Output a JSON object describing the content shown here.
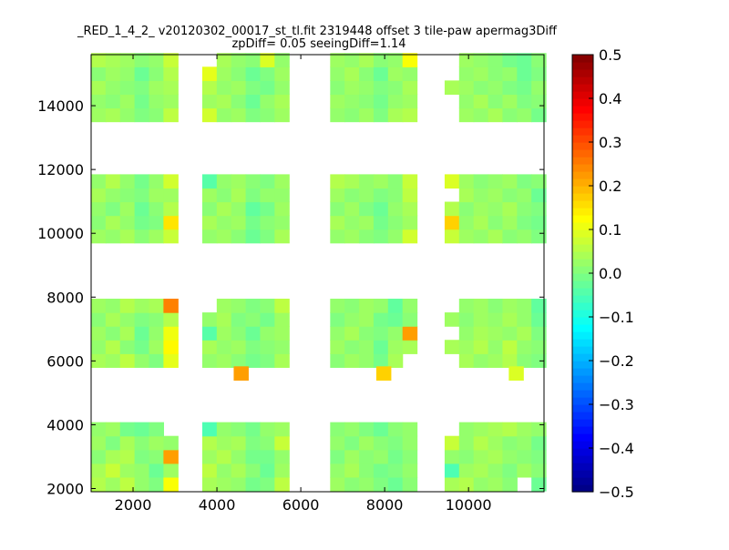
{
  "chart_data": {
    "type": "heatmap",
    "title_line1": "_RED_1_4_2_ v20120302_00017_st_tl.fit 2319448 offset 3 tile-paw apermag3Diff",
    "title_line2": "zpDiff= 0.05 seeingDiff=1.14",
    "xlim": [
      1000,
      11800
    ],
    "ylim": [
      1900,
      15600
    ],
    "xticks": [
      2000,
      4000,
      6000,
      8000,
      10000
    ],
    "yticks": [
      2000,
      4000,
      6000,
      8000,
      10000,
      12000,
      14000
    ],
    "colormap": "jet",
    "colorbar": {
      "range": [
        -0.5,
        0.5
      ],
      "ticks": [
        "0.5",
        "0.4",
        "0.3",
        "0.2",
        "0.1",
        "0.0",
        "−0.1",
        "−0.2",
        "−0.3",
        "−0.4",
        "−0.5"
      ]
    },
    "cell_size": [
      345,
      430
    ],
    "blocks": [
      {
        "x0": 1000,
        "y0": 1930,
        "cols": 6,
        "rows": 5,
        "values": [
          [
            0.05,
            0.03,
            0.06,
            0.02,
            0.0,
            0.12
          ],
          [
            0.04,
            0.07,
            0.03,
            0.02,
            -0.02,
            0.03
          ],
          [
            0.01,
            0.04,
            0.05,
            0.0,
            0.01,
            0.22
          ],
          [
            0.03,
            0.0,
            0.04,
            0.01,
            0.03,
            0.02
          ],
          [
            0.02,
            0.03,
            -0.01,
            -0.02,
            0.0,
            null
          ]
        ]
      },
      {
        "x0": 3650,
        "y0": 1930,
        "cols": 6,
        "rows": 5,
        "values": [
          [
            0.04,
            0.03,
            0.02,
            -0.01,
            0.0,
            0.06
          ],
          [
            0.06,
            0.02,
            0.04,
            0.01,
            -0.02,
            0.03
          ],
          [
            0.03,
            0.05,
            0.02,
            -0.01,
            -0.01,
            0.02
          ],
          [
            0.05,
            0.03,
            0.04,
            0.0,
            0.01,
            0.07
          ],
          [
            -0.05,
            0.02,
            0.01,
            -0.01,
            0.02,
            0.03
          ]
        ]
      },
      {
        "x0": 6700,
        "y0": 1930,
        "cols": 6,
        "rows": 5,
        "values": [
          [
            0.03,
            0.01,
            0.02,
            0.0,
            -0.02,
            0.01
          ],
          [
            0.02,
            0.04,
            0.01,
            -0.01,
            0.0,
            0.02
          ],
          [
            0.0,
            0.03,
            0.01,
            0.02,
            -0.01,
            0.01
          ],
          [
            0.02,
            0.0,
            0.03,
            0.01,
            0.0,
            0.02
          ],
          [
            0.01,
            0.02,
            0.0,
            -0.02,
            0.01,
            0.02
          ]
        ]
      },
      {
        "x0": 9430,
        "y0": 1930,
        "cols": 7,
        "rows": 5,
        "values": [
          [
            0.04,
            0.05,
            0.02,
            0.03,
            0.01,
            null,
            -0.02
          ],
          [
            -0.05,
            0.03,
            0.04,
            0.02,
            0.0,
            0.03,
            0.01
          ],
          [
            0.02,
            0.01,
            0.03,
            0.04,
            0.02,
            0.01,
            0.0
          ],
          [
            0.07,
            0.02,
            0.05,
            0.03,
            0.01,
            0.02,
            -0.01
          ],
          [
            null,
            0.02,
            0.03,
            0.04,
            0.05,
            0.03,
            0.02
          ]
        ]
      },
      {
        "x0": 1000,
        "y0": 5800,
        "cols": 6,
        "rows": 5,
        "values": [
          [
            0.04,
            0.03,
            0.06,
            0.02,
            0.0,
            0.1
          ],
          [
            0.02,
            0.05,
            0.01,
            -0.01,
            0.03,
            0.13
          ],
          [
            0.03,
            0.01,
            0.04,
            -0.02,
            0.02,
            0.11
          ],
          [
            0.01,
            0.04,
            0.02,
            0.0,
            0.01,
            0.05
          ],
          [
            0.03,
            0.02,
            0.05,
            0.03,
            0.04,
            0.25
          ]
        ]
      },
      {
        "x0": 3650,
        "y0": 5800,
        "cols": 6,
        "rows": 5,
        "values": [
          [
            0.02,
            0.03,
            0.01,
            -0.01,
            0.0,
            0.04
          ],
          [
            0.04,
            0.02,
            0.03,
            0.0,
            0.01,
            0.02
          ],
          [
            -0.04,
            0.03,
            0.01,
            -0.02,
            0.02,
            0.03
          ],
          [
            0.02,
            0.04,
            0.0,
            0.01,
            -0.01,
            0.03
          ],
          [
            null,
            0.03,
            0.02,
            0.0,
            0.01,
            0.06
          ]
        ]
      },
      {
        "x0": 6700,
        "y0": 5800,
        "cols": 6,
        "rows": 5,
        "values": [
          [
            0.01,
            0.03,
            0.02,
            -0.01,
            0.04,
            null
          ],
          [
            0.03,
            0.01,
            0.02,
            -0.02,
            0.03,
            0.04
          ],
          [
            0.02,
            0.04,
            0.01,
            0.0,
            0.02,
            0.22
          ],
          [
            0.0,
            0.02,
            0.03,
            -0.01,
            -0.02,
            0.01
          ],
          [
            0.02,
            0.01,
            0.03,
            0.02,
            -0.03,
            0.02
          ]
        ]
      },
      {
        "x0": 9430,
        "y0": 5800,
        "cols": 7,
        "rows": 5,
        "values": [
          [
            null,
            0.04,
            0.02,
            0.03,
            0.05,
            0.01,
            0.0
          ],
          [
            0.04,
            0.03,
            0.05,
            0.02,
            0.06,
            0.02,
            0.01
          ],
          [
            null,
            0.02,
            0.04,
            0.03,
            0.02,
            0.04,
            0.0
          ],
          [
            0.03,
            0.01,
            0.03,
            0.02,
            0.04,
            0.02,
            -0.02
          ],
          [
            null,
            0.02,
            0.03,
            0.01,
            0.03,
            0.02,
            -0.03
          ]
        ]
      },
      {
        "x0": 1000,
        "y0": 9700,
        "cols": 6,
        "rows": 5,
        "values": [
          [
            0.03,
            0.02,
            0.04,
            0.01,
            0.03,
            0.07
          ],
          [
            0.01,
            0.04,
            0.02,
            -0.01,
            0.0,
            0.15
          ],
          [
            0.02,
            0.0,
            0.03,
            -0.02,
            0.01,
            0.05
          ],
          [
            0.04,
            0.02,
            0.01,
            0.0,
            0.03,
            0.03
          ],
          [
            0.02,
            0.05,
            0.02,
            -0.01,
            0.02,
            0.08
          ]
        ]
      },
      {
        "x0": 3650,
        "y0": 9700,
        "cols": 6,
        "rows": 5,
        "values": [
          [
            0.02,
            0.03,
            0.01,
            -0.02,
            0.0,
            0.04
          ],
          [
            0.04,
            0.02,
            0.03,
            -0.01,
            0.01,
            0.02
          ],
          [
            0.01,
            0.04,
            0.02,
            -0.03,
            -0.01,
            0.03
          ],
          [
            0.03,
            0.01,
            0.04,
            0.0,
            0.02,
            0.02
          ],
          [
            -0.04,
            0.02,
            0.03,
            0.01,
            0.0,
            0.03
          ]
        ]
      },
      {
        "x0": 6700,
        "y0": 9700,
        "cols": 6,
        "rows": 5,
        "values": [
          [
            0.02,
            0.03,
            0.01,
            0.0,
            0.02,
            0.08
          ],
          [
            0.04,
            0.02,
            0.03,
            -0.01,
            0.01,
            0.03
          ],
          [
            0.01,
            0.03,
            0.0,
            -0.02,
            0.02,
            0.04
          ],
          [
            0.03,
            0.01,
            0.02,
            0.0,
            0.01,
            0.06
          ],
          [
            0.05,
            0.04,
            0.02,
            0.03,
            0.01,
            0.07
          ]
        ]
      },
      {
        "x0": 9430,
        "y0": 9700,
        "cols": 7,
        "rows": 5,
        "values": [
          [
            0.07,
            0.03,
            0.02,
            0.04,
            0.01,
            0.02,
            0.0
          ],
          [
            0.17,
            0.02,
            0.04,
            0.01,
            0.03,
            0.0,
            -0.01
          ],
          [
            0.05,
            0.01,
            0.03,
            0.02,
            0.04,
            0.01,
            0.0
          ],
          [
            null,
            0.04,
            0.02,
            0.03,
            0.01,
            0.02,
            -0.02
          ],
          [
            0.09,
            0.03,
            0.01,
            0.02,
            0.03,
            0.0,
            0.01
          ]
        ]
      },
      {
        "x0": 1000,
        "y0": 13500,
        "cols": 6,
        "rows": 5,
        "values": [
          [
            0.03,
            0.04,
            0.02,
            0.0,
            0.01,
            0.06
          ],
          [
            0.02,
            0.01,
            0.03,
            -0.01,
            0.02,
            0.03
          ],
          [
            0.04,
            0.02,
            0.01,
            0.0,
            0.03,
            0.04
          ],
          [
            0.01,
            0.03,
            0.02,
            -0.02,
            0.01,
            0.05
          ],
          [
            0.05,
            0.04,
            0.03,
            0.01,
            0.02,
            0.07
          ]
        ]
      },
      {
        "x0": 3650,
        "y0": 13500,
        "cols": 6,
        "rows": 5,
        "values": [
          [
            0.08,
            0.02,
            0.03,
            0.0,
            0.01,
            0.03
          ],
          [
            0.03,
            0.04,
            0.01,
            -0.02,
            0.02,
            0.04
          ],
          [
            0.05,
            0.02,
            0.03,
            0.0,
            -0.01,
            0.02
          ],
          [
            0.1,
            0.03,
            0.01,
            -0.02,
            0.0,
            0.03
          ],
          [
            null,
            0.04,
            0.02,
            0.01,
            0.09,
            0.02
          ]
        ]
      },
      {
        "x0": 6700,
        "y0": 13500,
        "cols": 6,
        "rows": 5,
        "values": [
          [
            0.02,
            0.01,
            0.03,
            0.0,
            0.04,
            0.05
          ],
          [
            0.03,
            0.02,
            0.01,
            -0.01,
            0.02,
            0.03
          ],
          [
            0.01,
            0.03,
            0.02,
            0.0,
            0.01,
            0.04
          ],
          [
            0.02,
            0.04,
            0.01,
            -0.02,
            0.03,
            0.02
          ],
          [
            0.03,
            0.02,
            0.04,
            0.01,
            0.02,
            0.12
          ]
        ]
      },
      {
        "x0": 9430,
        "y0": 13500,
        "cols": 7,
        "rows": 5,
        "values": [
          [
            null,
            0.03,
            0.02,
            0.04,
            0.01,
            0.02,
            -0.01
          ],
          [
            null,
            0.02,
            0.04,
            0.01,
            0.03,
            0.0,
            0.01
          ],
          [
            0.04,
            0.03,
            0.01,
            0.02,
            0.0,
            -0.01,
            0.02
          ],
          [
            null,
            0.02,
            0.03,
            0.01,
            0.02,
            -0.02,
            0.0
          ],
          [
            null,
            0.03,
            0.02,
            0.01,
            -0.01,
            -0.02,
            0.01
          ]
        ]
      }
    ],
    "isolated_cells": [
      {
        "x": 4400,
        "y": 5400,
        "value": 0.22
      },
      {
        "x": 7800,
        "y": 5400,
        "value": 0.17
      },
      {
        "x": 10960,
        "y": 5400,
        "value": 0.09
      }
    ]
  }
}
